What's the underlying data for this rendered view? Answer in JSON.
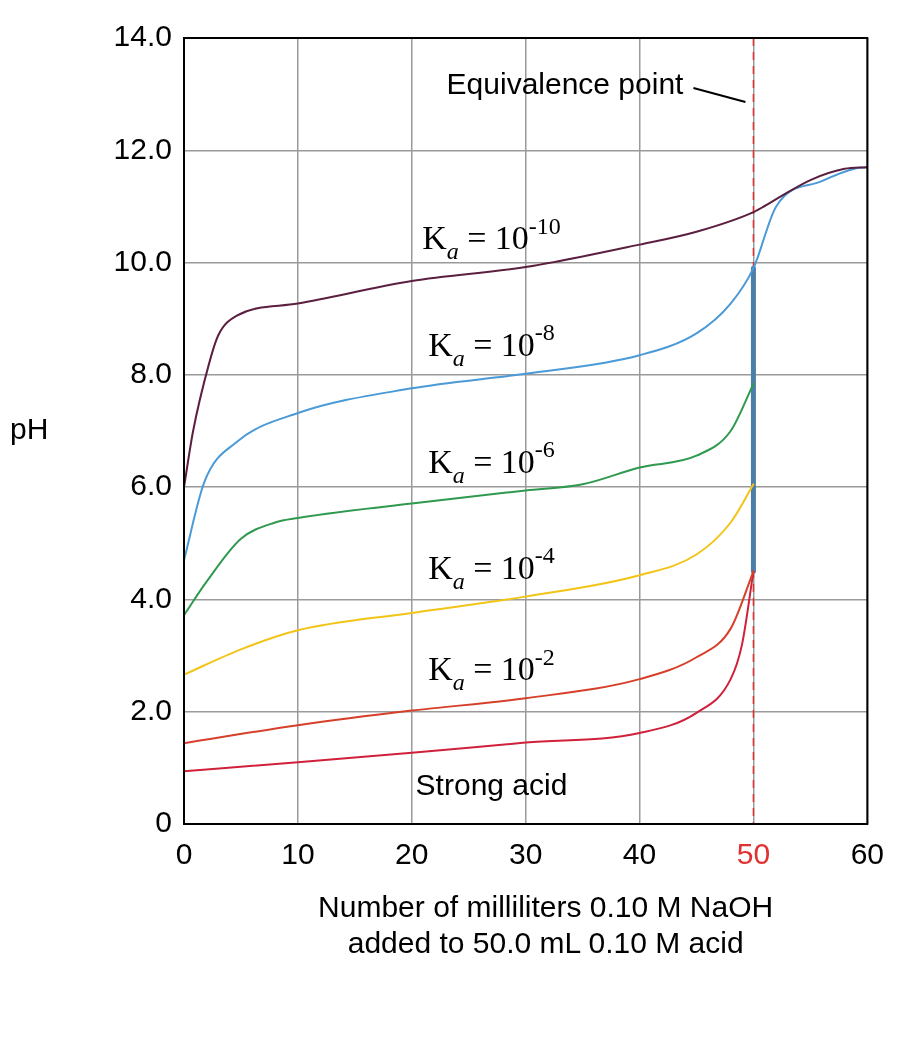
{
  "chart_data": {
    "type": "line",
    "xlabel": "Number of milliliters 0.10 M NaOH\nadded to 50.0 mL 0.10 M acid",
    "ylabel": "pH",
    "xlim": [
      0,
      60
    ],
    "xticks": [
      0,
      10,
      20,
      30,
      40,
      50,
      60
    ],
    "ylim": [
      0,
      14
    ],
    "yticks": [
      {
        "value": 0,
        "label": "0"
      },
      {
        "value": 2,
        "label": "2.0"
      },
      {
        "value": 4,
        "label": "4.0"
      },
      {
        "value": 6,
        "label": "6.0"
      },
      {
        "value": 8,
        "label": "8.0"
      },
      {
        "value": 10,
        "label": "10.0"
      },
      {
        "value": 12,
        "label": "12.0"
      },
      {
        "value": 14,
        "label": "14.0"
      }
    ],
    "grid": true,
    "legend": false,
    "marker": "none",
    "line_style": "solid",
    "series": [
      {
        "name": "K$_{a}$ = 10$^{-10}$",
        "color": "#5b1f3f",
        "x": [
          0,
          0.8,
          2.2,
          3,
          4.6,
          10,
          20,
          30,
          40,
          45,
          50,
          52,
          55,
          58,
          60
        ],
        "values": [
          6.0,
          7.0,
          8.2,
          8.7,
          9.05,
          9.27,
          9.67,
          9.92,
          10.32,
          10.55,
          10.9,
          11.13,
          11.47,
          11.67,
          11.7
        ]
      },
      {
        "name": "K$_{a}$ = 10$^{-8}$",
        "color": "#4a9ad8",
        "x": [
          0,
          1.8,
          4.6,
          10,
          20,
          30,
          40,
          45,
          48,
          50,
          52,
          56,
          59,
          60
        ],
        "values": [
          4.7,
          6.1,
          6.8,
          7.32,
          7.76,
          8.02,
          8.35,
          8.74,
          9.27,
          9.9,
          11.0,
          11.45,
          11.68,
          11.7
        ]
      },
      {
        "name": "K$_{a}$ = 10$^{-6}$",
        "color": "#2f9a4f",
        "x": [
          0,
          2,
          5,
          8,
          10,
          20,
          30,
          35,
          40,
          45,
          48,
          50
        ],
        "values": [
          3.72,
          4.32,
          5.08,
          5.37,
          5.45,
          5.71,
          5.94,
          6.05,
          6.35,
          6.56,
          7.0,
          7.84
        ]
      },
      {
        "name": "K$_{a}$ = 10$^{-4}$",
        "color": "#f2c418",
        "x": [
          0,
          5,
          10,
          20,
          30,
          40,
          45,
          48,
          50
        ],
        "values": [
          2.66,
          3.11,
          3.45,
          3.76,
          4.05,
          4.43,
          4.8,
          5.37,
          6.05
        ]
      },
      {
        "name": "K$_{a}$ = 10$^{-2}$",
        "color": "#d6402a",
        "x": [
          0,
          10,
          20,
          30,
          40,
          45,
          48,
          50
        ],
        "values": [
          1.44,
          1.76,
          2.02,
          2.24,
          2.58,
          2.97,
          3.48,
          4.5
        ]
      },
      {
        "name": "Strong acid",
        "color": "#d0203a",
        "x": [
          0,
          10,
          20,
          30,
          40,
          45,
          48,
          49,
          50
        ],
        "values": [
          0.94,
          1.1,
          1.27,
          1.45,
          1.62,
          1.98,
          2.58,
          3.2,
          4.5
        ]
      },
      {
        "color": "#4d7ea8",
        "x": [
          50,
          50
        ],
        "values": [
          4.5,
          9.9
        ]
      }
    ],
    "ref_lines": [
      {
        "axis": "x",
        "value": 50,
        "label": "Equivalence point",
        "color": "#e03030",
        "line_style": "dashed"
      }
    ]
  }
}
